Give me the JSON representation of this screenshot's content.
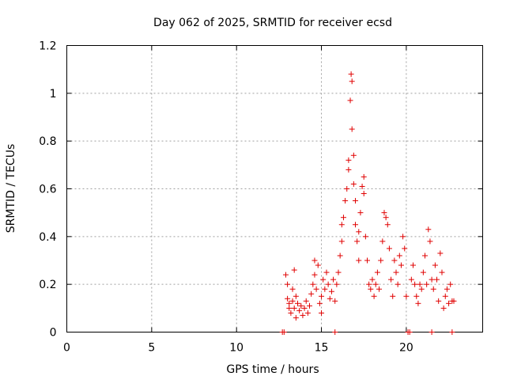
{
  "chart_data": {
    "type": "scatter",
    "title": "Day 062 of 2025, SRMTID for receiver ecsd",
    "xlabel": "GPS time / hours",
    "ylabel": "SRMTID / TECUs",
    "xlim": [
      0,
      24.5
    ],
    "ylim": [
      0,
      1.2
    ],
    "xticks": [
      0,
      5,
      10,
      15,
      20
    ],
    "xtick_labels": [
      "0",
      "5",
      "10",
      "15",
      "20"
    ],
    "yticks": [
      0,
      0.2,
      0.4,
      0.6,
      0.8,
      1.0,
      1.2
    ],
    "ytick_labels": [
      "0",
      "0.2",
      "0.4",
      "0.6",
      "0.8",
      "1",
      "1.2"
    ],
    "grid": true,
    "marker": "plus",
    "series_color": "#e00000",
    "series": [
      {
        "name": "SRMTID",
        "points": [
          [
            12.7,
            0.0
          ],
          [
            12.8,
            0.0
          ],
          [
            12.9,
            0.24
          ],
          [
            13.0,
            0.2
          ],
          [
            13.0,
            0.14
          ],
          [
            13.1,
            0.12
          ],
          [
            13.1,
            0.1
          ],
          [
            13.2,
            0.08
          ],
          [
            13.3,
            0.18
          ],
          [
            13.3,
            0.13
          ],
          [
            13.4,
            0.26
          ],
          [
            13.4,
            0.1
          ],
          [
            13.5,
            0.06
          ],
          [
            13.5,
            0.15
          ],
          [
            13.6,
            0.12
          ],
          [
            13.7,
            0.09
          ],
          [
            13.8,
            0.11
          ],
          [
            13.9,
            0.07
          ],
          [
            14.0,
            0.1
          ],
          [
            14.1,
            0.13
          ],
          [
            14.2,
            0.08
          ],
          [
            14.3,
            0.11
          ],
          [
            14.4,
            0.16
          ],
          [
            14.5,
            0.2
          ],
          [
            14.6,
            0.3
          ],
          [
            14.6,
            0.24
          ],
          [
            14.7,
            0.18
          ],
          [
            14.8,
            0.28
          ],
          [
            14.9,
            0.12
          ],
          [
            15.0,
            0.08
          ],
          [
            15.0,
            0.15
          ],
          [
            15.1,
            0.22
          ],
          [
            15.2,
            0.18
          ],
          [
            15.3,
            0.25
          ],
          [
            15.4,
            0.2
          ],
          [
            15.5,
            0.14
          ],
          [
            15.6,
            0.17
          ],
          [
            15.7,
            0.22
          ],
          [
            15.8,
            0.0
          ],
          [
            15.8,
            0.13
          ],
          [
            15.9,
            0.2
          ],
          [
            16.0,
            0.25
          ],
          [
            16.1,
            0.32
          ],
          [
            16.2,
            0.45
          ],
          [
            16.2,
            0.38
          ],
          [
            16.3,
            0.48
          ],
          [
            16.4,
            0.55
          ],
          [
            16.5,
            0.6
          ],
          [
            16.6,
            0.68
          ],
          [
            16.6,
            0.72
          ],
          [
            16.7,
            0.97
          ],
          [
            16.75,
            1.08
          ],
          [
            16.8,
            1.05
          ],
          [
            16.8,
            0.85
          ],
          [
            16.9,
            0.74
          ],
          [
            16.9,
            0.62
          ],
          [
            17.0,
            0.55
          ],
          [
            17.0,
            0.45
          ],
          [
            17.1,
            0.38
          ],
          [
            17.2,
            0.3
          ],
          [
            17.2,
            0.42
          ],
          [
            17.3,
            0.5
          ],
          [
            17.4,
            0.61
          ],
          [
            17.5,
            0.65
          ],
          [
            17.5,
            0.58
          ],
          [
            17.6,
            0.4
          ],
          [
            17.7,
            0.3
          ],
          [
            17.8,
            0.2
          ],
          [
            17.9,
            0.18
          ],
          [
            18.0,
            0.22
          ],
          [
            18.1,
            0.15
          ],
          [
            18.2,
            0.2
          ],
          [
            18.3,
            0.25
          ],
          [
            18.4,
            0.18
          ],
          [
            18.5,
            0.3
          ],
          [
            18.6,
            0.38
          ],
          [
            18.7,
            0.5
          ],
          [
            18.8,
            0.48
          ],
          [
            18.9,
            0.45
          ],
          [
            19.0,
            0.35
          ],
          [
            19.1,
            0.22
          ],
          [
            19.2,
            0.15
          ],
          [
            19.3,
            0.3
          ],
          [
            19.4,
            0.25
          ],
          [
            19.5,
            0.2
          ],
          [
            19.6,
            0.32
          ],
          [
            19.7,
            0.28
          ],
          [
            19.8,
            0.4
          ],
          [
            19.9,
            0.35
          ],
          [
            20.0,
            0.15
          ],
          [
            20.1,
            0.0
          ],
          [
            20.2,
            0.0
          ],
          [
            20.3,
            0.22
          ],
          [
            20.4,
            0.28
          ],
          [
            20.5,
            0.2
          ],
          [
            20.6,
            0.15
          ],
          [
            20.7,
            0.12
          ],
          [
            20.8,
            0.2
          ],
          [
            20.9,
            0.18
          ],
          [
            21.0,
            0.25
          ],
          [
            21.1,
            0.32
          ],
          [
            21.2,
            0.2
          ],
          [
            21.3,
            0.43
          ],
          [
            21.4,
            0.38
          ],
          [
            21.5,
            0.0
          ],
          [
            21.5,
            0.22
          ],
          [
            21.6,
            0.18
          ],
          [
            21.7,
            0.28
          ],
          [
            21.8,
            0.22
          ],
          [
            21.9,
            0.13
          ],
          [
            22.0,
            0.33
          ],
          [
            22.1,
            0.25
          ],
          [
            22.2,
            0.1
          ],
          [
            22.3,
            0.15
          ],
          [
            22.4,
            0.18
          ],
          [
            22.5,
            0.12
          ],
          [
            22.6,
            0.2
          ],
          [
            22.7,
            0.0
          ],
          [
            22.7,
            0.13
          ],
          [
            22.8,
            0.13
          ]
        ]
      }
    ]
  }
}
